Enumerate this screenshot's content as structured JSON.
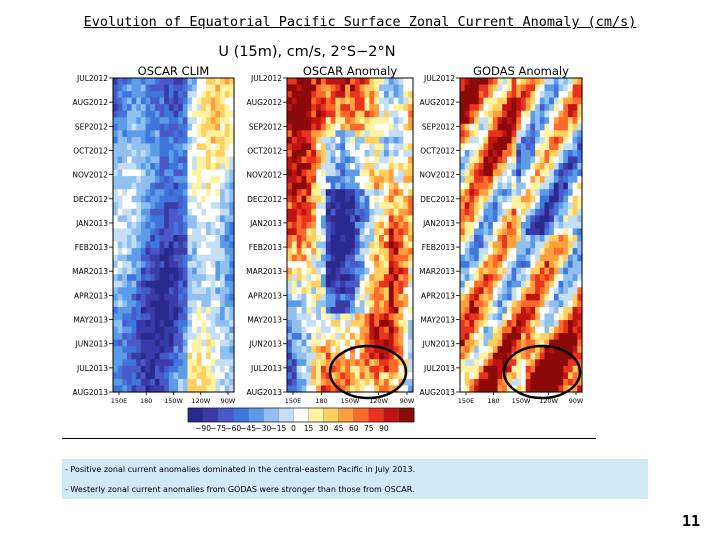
{
  "slide": {
    "title": "Evolution of Equatorial Pacific Surface Zonal Current Anomaly (cm/s)",
    "number": "11"
  },
  "chart_data": {
    "type": "heatmap",
    "suptitle": "U (15m), cm/s, 2°S−2°N",
    "panels": [
      {
        "title": "OSCAR CLIM",
        "highlight": null
      },
      {
        "title": "OSCAR Anomaly",
        "highlight": "central Pacific, Jul–Aug 2013"
      },
      {
        "title": "GODAS Anomaly",
        "highlight": "eastern Pacific, Jul–Aug 2013"
      }
    ],
    "y_tick_labels": [
      "JUL2012",
      "AUG2012",
      "SEP2012",
      "OCT2012",
      "NOV2012",
      "DEC2012",
      "JAN2013",
      "FEB2013",
      "MAR2013",
      "APR2013",
      "MAY2013",
      "JUN2013",
      "JUL2013",
      "AUG2013"
    ],
    "x_tick_labels": [
      "150E",
      "180",
      "150W",
      "120W",
      "90W"
    ],
    "colorbar": {
      "tick_labels": [
        "−90",
        "−75",
        "−60",
        "−45",
        "−30",
        "−15",
        "0",
        "15",
        "30",
        "45",
        "60",
        "75",
        "90"
      ],
      "colors": [
        "#2a2a8e",
        "#3a3aa8",
        "#4a58c8",
        "#3f76dc",
        "#5b9be8",
        "#8fc0f0",
        "#c4dff5",
        "#ffffff",
        "#fff2a0",
        "#ffd060",
        "#ffa040",
        "#ff6a2a",
        "#e8341e",
        "#c01414",
        "#8c0a0a"
      ]
    }
  },
  "notes": [
    "-  Positive zonal current anomalies dominated in the central-eastern Pacific in July 2013.",
    "-  Westerly zonal current anomalies from GODAS were stronger than those from OSCAR."
  ]
}
